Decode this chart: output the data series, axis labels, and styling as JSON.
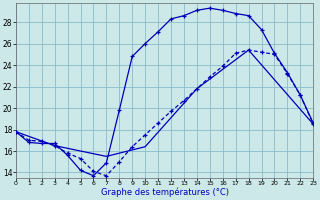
{
  "title": "Graphe des températures (°C)",
  "bg_color": "#cce8e8",
  "grid_color": "#88bbcc",
  "line_color": "#0000bb",
  "xlim": [
    0,
    23
  ],
  "ylim": [
    13.5,
    29.8
  ],
  "yticks": [
    14,
    16,
    18,
    20,
    22,
    24,
    26,
    28
  ],
  "xticks": [
    0,
    1,
    2,
    3,
    4,
    5,
    6,
    7,
    8,
    9,
    10,
    11,
    12,
    13,
    14,
    15,
    16,
    17,
    18,
    19,
    20,
    21,
    22,
    23
  ],
  "curve1_x": [
    0,
    1,
    2,
    3,
    4,
    5,
    6,
    7,
    8,
    9,
    10,
    11,
    12,
    13,
    14,
    15,
    16,
    17,
    18,
    19,
    20,
    21,
    22,
    23
  ],
  "curve1_y": [
    17.8,
    16.8,
    16.7,
    16.7,
    15.6,
    14.2,
    13.7,
    14.9,
    19.8,
    24.8,
    26.0,
    27.1,
    28.3,
    28.6,
    29.1,
    29.3,
    29.1,
    28.8,
    28.6,
    27.3,
    25.1,
    23.3,
    21.2,
    18.6
  ],
  "curve2_x": [
    0,
    1,
    2,
    3,
    4,
    5,
    6,
    7,
    8,
    9,
    10,
    11,
    12,
    13,
    14,
    15,
    16,
    17,
    18,
    19,
    20,
    21,
    22,
    23
  ],
  "curve2_y": [
    17.8,
    17.0,
    16.9,
    16.5,
    15.8,
    15.3,
    14.1,
    13.7,
    15.0,
    16.4,
    17.5,
    18.6,
    19.7,
    20.7,
    21.8,
    22.9,
    23.9,
    25.1,
    25.4,
    25.2,
    25.0,
    23.2,
    21.2,
    18.5
  ],
  "curve3_x": [
    0,
    3,
    7,
    10,
    14,
    18,
    23
  ],
  "curve3_y": [
    17.8,
    16.5,
    15.5,
    16.4,
    21.8,
    25.4,
    18.5
  ],
  "figsize": [
    3.2,
    2.0
  ],
  "dpi": 100
}
